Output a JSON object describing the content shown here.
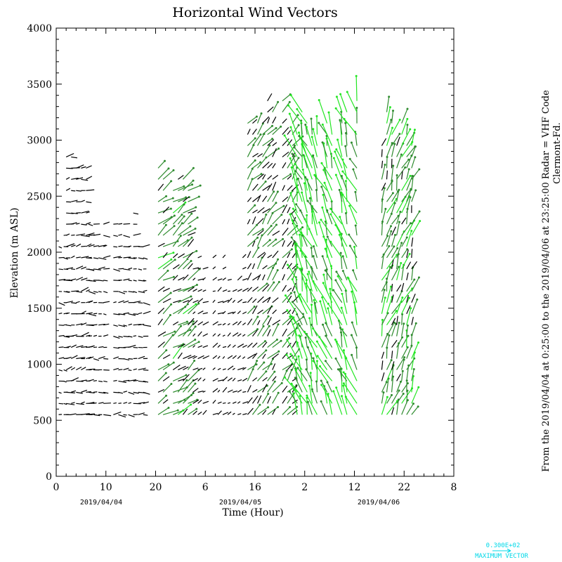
{
  "chart_data": {
    "type": "vector-field",
    "title": "Horizontal Wind Vectors",
    "xlabel": "Time (Hour)",
    "ylabel": "Elevation (m ASL)",
    "xlim": [
      0,
      80
    ],
    "ylim": [
      0,
      4000
    ],
    "y_ticks": [
      "0",
      "500",
      "1000",
      "1500",
      "2000",
      "2500",
      "3000",
      "3500",
      "4000"
    ],
    "x_ticks": [
      "0",
      "10",
      "20",
      "6",
      "16",
      "2",
      "12",
      "22",
      "8"
    ],
    "date_labels": [
      "2019/04/04",
      "2019/04/05",
      "2019/04/06"
    ],
    "side_note_line1": "From the 2019/04/04 at  0:25:00 to the 2019/04/06 at 23:25:00 Radar = VHF Code",
    "side_note_line2": "Clermont-Fd.",
    "max_vector_value": "0.300E+02",
    "max_vector_label": "MAXIMUM VECTOR",
    "grid": false,
    "colors": {
      "weak": "#000000",
      "moderate": "#2e8b2e",
      "strong": "#22e622",
      "extreme": "#00e0e0"
    },
    "wind_regimes": [
      {
        "hours": [
          0,
          1.5
        ],
        "alt": [
          550,
          2300
        ],
        "dir_deg": 95,
        "speed": 6
      },
      {
        "hours": [
          1.5,
          6
        ],
        "alt": [
          550,
          2900
        ],
        "dir_deg": 80,
        "speed": 8
      },
      {
        "hours": [
          6,
          18
        ],
        "alt": [
          550,
          2400
        ],
        "dir_deg": 90,
        "speed": 7
      },
      {
        "hours": [
          20,
          27
        ],
        "alt": [
          550,
          2900
        ],
        "dir_deg": 55,
        "speed": 14
      },
      {
        "hours": [
          27,
          38
        ],
        "alt": [
          550,
          2000
        ],
        "dir_deg": 60,
        "speed": 6
      },
      {
        "hours": [
          38,
          48
        ],
        "alt": [
          550,
          3400
        ],
        "dir_deg": 40,
        "speed": 12
      },
      {
        "hours": [
          48,
          61
        ],
        "alt": [
          550,
          3400
        ],
        "dir_deg": 340,
        "speed": 22
      },
      {
        "hours": [
          65,
          72
        ],
        "alt": [
          550,
          3300
        ],
        "dir_deg": 20,
        "speed": 16
      }
    ]
  }
}
